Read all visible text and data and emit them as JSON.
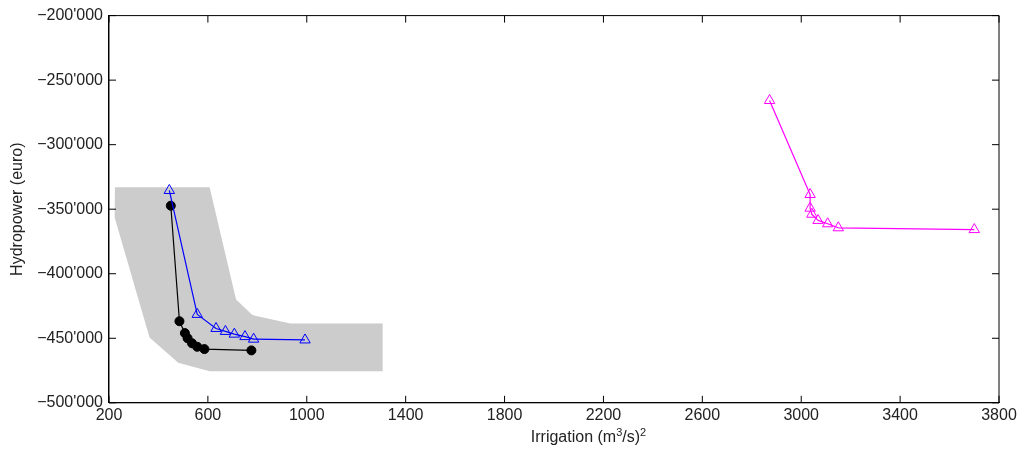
{
  "chart_data": {
    "type": "line",
    "xlabel": "Irrigation (m$^{3}$/s)$^{2}$",
    "ylabel": "Hydropower (euro)",
    "xlim": [
      200,
      3800
    ],
    "xticks": [
      200,
      600,
      1000,
      1400,
      1800,
      2200,
      2600,
      3000,
      3400,
      3800
    ],
    "ylim": [
      -500000,
      -200000
    ],
    "yticks": [
      {
        "value": -500000,
        "label": "−500'000"
      },
      {
        "value": -450000,
        "label": "−450'000"
      },
      {
        "value": -400000,
        "label": "−400'000"
      },
      {
        "value": -350000,
        "label": "−350'000"
      },
      {
        "value": -300000,
        "label": "−300'000"
      },
      {
        "value": -250000,
        "label": "−250'000"
      },
      {
        "value": -200000,
        "label": "−200'000"
      }
    ],
    "grid": false,
    "legend": false,
    "series": [
      {
        "type": "area",
        "color": "#cccccc",
        "x": [
          224,
          607,
          714,
          780,
          934,
          1307,
          1307,
          607,
          480,
          364,
          223
        ],
        "values": [
          -333000,
          -333000,
          -420000,
          -432000,
          -438500,
          -438500,
          -475500,
          -475500,
          -469000,
          -449500,
          -356500
        ]
      },
      {
        "color": "#0000ff",
        "marker": "triangle",
        "x": [
          444,
          557,
          633,
          671,
          707,
          750,
          785,
          993
        ],
        "values": [
          -335500,
          -431500,
          -442400,
          -444700,
          -446800,
          -448700,
          -450700,
          -451300
        ]
      },
      {
        "color": "#000000",
        "marker": "circle",
        "x": [
          450,
          485,
          507,
          518,
          536,
          557,
          586,
          776
        ],
        "values": [
          -347300,
          -436800,
          -446000,
          -450000,
          -453900,
          -456600,
          -458400,
          -459400
        ]
      },
      {
        "color": "#ff00ff",
        "marker": "triangle",
        "x": [
          2872,
          3036,
          3036,
          3043,
          3068,
          3107,
          3150,
          3700
        ],
        "values": [
          -265800,
          -338600,
          -349200,
          -353900,
          -358700,
          -361300,
          -364400,
          -365800
        ]
      }
    ]
  }
}
